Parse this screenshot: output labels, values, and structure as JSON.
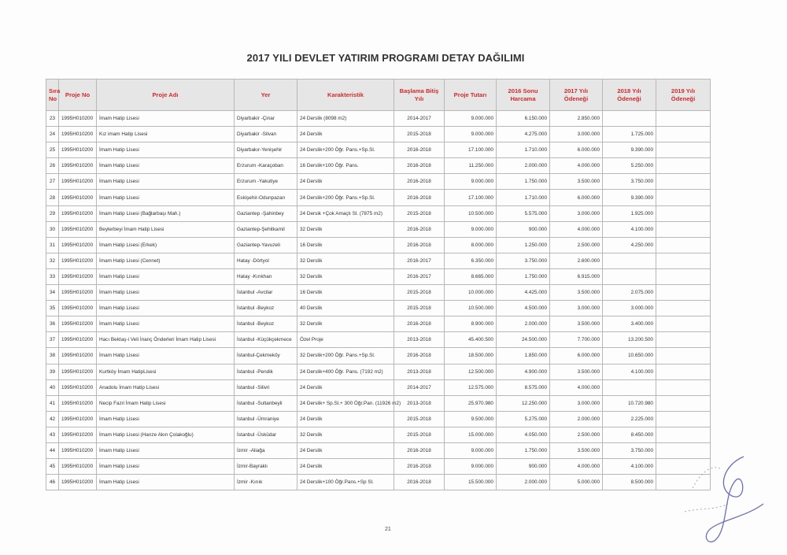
{
  "title": "2017 YILI DEVLET YATIRIM PROGRAMI DETAY DAĞILIMI",
  "columns": [
    "Sıra No",
    "Proje No",
    "Proje Adı",
    "Yer",
    "Karakteristik",
    "Başlama Bitiş Yılı",
    "Proje Tutarı",
    "2016 Sonu Harcama",
    "2017 Yılı Ödeneği",
    "2018 Yılı Ödeneği",
    "2019 Yılı Ödeneği"
  ],
  "rows": [
    [
      "23",
      "1995H010200",
      "İmam Hatip Lisesi",
      "Diyarbakir -Çinar",
      "24 Derslik (8098 m2)",
      "2014-2017",
      "9.000.000",
      "6.150.000",
      "2.850.000",
      "",
      ""
    ],
    [
      "24",
      "1995H010200",
      "Kız imam Hatip Lisesi",
      "Diyarbakir -Silvan",
      "24 Derslik",
      "2015-2018",
      "9.000.000",
      "4.275.000",
      "3.000.000",
      "1.725.000",
      ""
    ],
    [
      "25",
      "1995H010200",
      "İmam Hatip Lisesi",
      "Diyarbakır-Yenişehir",
      "24 Derslik+200 Öğr. Pans.+Sp.Sl.",
      "2016-2018",
      "17.100.000",
      "1.710.000",
      "6.000.000",
      "9.390.000",
      ""
    ],
    [
      "26",
      "1995H010200",
      "İmam Hatip Lisesi",
      "Erzurum -Karaçoban",
      "16 Derslik+100 Öğr. Pans.",
      "2016-2018",
      "11.250.000",
      "2.000.000",
      "4.000.000",
      "5.250.000",
      ""
    ],
    [
      "27",
      "1995H010200",
      "İmam Hatip Lisesi",
      "Erzurum -Yakutiye",
      "24 Derslik",
      "2016-2018",
      "9.000.000",
      "1.750.000",
      "3.500.000",
      "3.750.000",
      ""
    ],
    [
      "28",
      "1995H010200",
      "İmam Hatip Lisesi",
      "Eskişehir-Odunpazarı",
      "24 Derslik+200 Öğr. Pans.+Sp.Sl.",
      "2016-2018",
      "17.100.000",
      "1.710.000",
      "6.000.000",
      "9.390.000",
      ""
    ],
    [
      "29",
      "1995H010200",
      "İmam Hatip Lisesi (Bağlarbaşı Mah.)",
      "Gaziantep -Şahinbey",
      "24 Dersik +Çok Amaçlı Sl. (7875 m2)",
      "2015-2018",
      "10.500.000",
      "5.575.000",
      "3.000.000",
      "1.925.000",
      ""
    ],
    [
      "30",
      "1995H010200",
      "Beylerbeyi İmam Hatip Lisesi",
      "Gaziantep-Şehitkamil",
      "32 Derslik",
      "2016-2018",
      "9.000.000",
      "900.000",
      "4.000.000",
      "4.100.000",
      ""
    ],
    [
      "31",
      "1995H010200",
      "İmam Hatip Lisesi (Erkek)",
      "Gaziantep-Yavuzeli",
      "16 Derslik",
      "2016-2018",
      "8.000.000",
      "1.250.000",
      "2.500.000",
      "4.250.000",
      ""
    ],
    [
      "32",
      "1995H010200",
      "İmam Hatip Lisesi (Cennet)",
      "Hatay -Dörtyol",
      "32 Derslik",
      "2016-2017",
      "6.350.000",
      "3.750.000",
      "2.600.000",
      "",
      ""
    ],
    [
      "33",
      "1995H010200",
      "İmam Hatip Lisesi",
      "Hatay -Kırıkhan",
      "32 Derslik",
      "2016-2017",
      "8.665.000",
      "1.750.000",
      "6.915.000",
      "",
      ""
    ],
    [
      "34",
      "1995H010200",
      "İmam Hatip Lisesi",
      "İstanbul -Avcilar",
      "16 Derslik",
      "2015-2018",
      "10.000.000",
      "4.425.000",
      "3.500.000",
      "2.075.000",
      ""
    ],
    [
      "35",
      "1995H010200",
      "İmam Hatip Lisesi",
      "İstanbul -Beykoz",
      "40 Derslik",
      "2015-2018",
      "10.500.000",
      "4.500.000",
      "3.000.000",
      "3.000.000",
      ""
    ],
    [
      "36",
      "1995H010200",
      "İmam Hatip Lisesi",
      "İstanbul -Beykoz",
      "32 Derslik",
      "2016-2018",
      "8.900.000",
      "2.000.000",
      "3.500.000",
      "3.400.000",
      ""
    ],
    [
      "37",
      "1995H010200",
      "Hacı Bektaş-i Veli İnanç Önderleri İmam Hatip Lisesi",
      "İstanbul -Küçükçekmece",
      "Özel Proje",
      "2013-2018",
      "45.400.500",
      "24.500.000",
      "7.700.000",
      "13.200.500",
      ""
    ],
    [
      "38",
      "1995H010200",
      "İmam Hatip Lisesi",
      "İstanbul-Çekmeköy",
      "32 Derslik+200 Öğr. Pans.+Sp.Sl.",
      "2016-2018",
      "18.500.000",
      "1.850.000",
      "6.000.000",
      "10.650.000",
      ""
    ],
    [
      "39",
      "1995H010200",
      "Kurtköy İmam HatipLisesi",
      "İstanbul -Pendik",
      "24 Derslik+400 Öğr. Pans. (7192 m2)",
      "2013-2018",
      "12.500.000",
      "4.900.000",
      "3.500.000",
      "4.100.000",
      ""
    ],
    [
      "40",
      "1995H010200",
      "Anadolu İmam Hatip Lisesi",
      "İstanbul -Silivri",
      "24 Derslik",
      "2014-2017",
      "12.575.000",
      "8.575.000",
      "4.000.000",
      "",
      ""
    ],
    [
      "41",
      "1995H010200",
      "Necip Fazıl İmam Hatip Lisesi",
      "İstanbul -Sultanbeyli",
      "24 Derslik+ Sp.Sl.+ 300 Öğr.Pan. (11926 m2)",
      "2013-2018",
      "25.970.980",
      "12.250.000",
      "3.000.000",
      "10.720.980",
      ""
    ],
    [
      "42",
      "1995H010200",
      "İmam Hatip Lisesi",
      "İstanbul -Ümraniye",
      "24 Derslik",
      "2015-2018",
      "9.500.000",
      "5.275.000",
      "2.000.000",
      "2.225.000",
      ""
    ],
    [
      "43",
      "1995H010200",
      "İmam Hatip Lisesi (Hanze Akın Çolakoğlu)",
      "İstanbul -Üsküdar",
      "32 Derslik",
      "2015-2018",
      "15.000.000",
      "4.050.000",
      "2.500.000",
      "8.450.000",
      ""
    ],
    [
      "44",
      "1995H010200",
      "İmam Hatip Lisesi",
      "İzmir -Aliağa",
      "24 Derslik",
      "2016-2018",
      "9.000.000",
      "1.750.000",
      "3.500.000",
      "3.750.000",
      ""
    ],
    [
      "45",
      "1995H010200",
      "İmam Hatip Lisesi",
      "İzmir-Bayraklı",
      "24 Derslik",
      "2016-2018",
      "9.000.000",
      "900.000",
      "4.000.000",
      "4.100.000",
      ""
    ],
    [
      "46",
      "1995H010200",
      "İmam Hatip Lisesi",
      "İzmir -Kınık",
      "24 Derslik+100 Öğr.Pans.+Sp Sl.",
      "2016-2018",
      "15.500.000",
      "2.000.000",
      "5.000.000",
      "8.500.000",
      ""
    ]
  ],
  "page_number": "21",
  "colors": {
    "header_text": "#d42a2a",
    "header_bg": "#e6e6e6",
    "signature": "#6a70b8"
  }
}
